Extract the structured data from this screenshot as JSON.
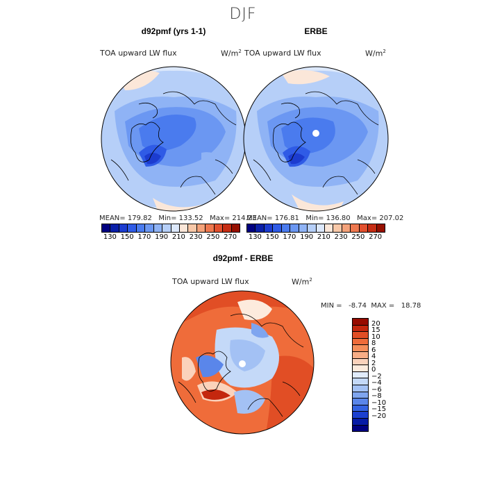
{
  "main_title": "DJF",
  "panels": {
    "left": {
      "title": "d92pmf (yrs 1-1)",
      "var_label": "TOA upward LW flux",
      "units": "W/m",
      "units_sup": "2",
      "stats": "MEAN= 179.82   Min= 133.52   Max= 214.23"
    },
    "right": {
      "title": "ERBE",
      "var_label": "TOA upward LW flux",
      "units": "W/m",
      "units_sup": "2",
      "stats": "MEAN= 176.81   Min= 136.80   Max= 207.02"
    },
    "diff": {
      "title": "d92pmf - ERBE",
      "var_label": "TOA upward LW flux",
      "units": "W/m",
      "units_sup": "2",
      "stats": "MIN =   -8.74  MAX =   18.78"
    }
  },
  "colorbar_top": {
    "colors": [
      "#000080",
      "#0a1fa8",
      "#1c3ccf",
      "#2f5be6",
      "#4a7bee",
      "#6b97f2",
      "#8fb3f5",
      "#b6cff8",
      "#dce8fb",
      "#fbe7d9",
      "#f8c8a8",
      "#f4a27a",
      "#ee784f",
      "#e2502e",
      "#c62d14",
      "#961000"
    ],
    "ticks": [
      "130",
      "150",
      "170",
      "190",
      "210",
      "230",
      "250",
      "270"
    ]
  },
  "colorbar_diff": {
    "colors": [
      "#970b00",
      "#c4270e",
      "#e14e25",
      "#ef6c3a",
      "#f58e5a",
      "#f8ad86",
      "#fbd2bb",
      "#fdebdd",
      "#e1ecfb",
      "#c4d9f8",
      "#a3c1f4",
      "#7fa5ef",
      "#5a86ea",
      "#3463e2",
      "#1b3fd0",
      "#061ba6",
      "#000080"
    ],
    "ticks": [
      "20",
      "15",
      "10",
      "8",
      "6",
      "4",
      "2",
      "0",
      "−2",
      "−4",
      "−6",
      "−8",
      "−10",
      "−15",
      "−20"
    ]
  }
}
